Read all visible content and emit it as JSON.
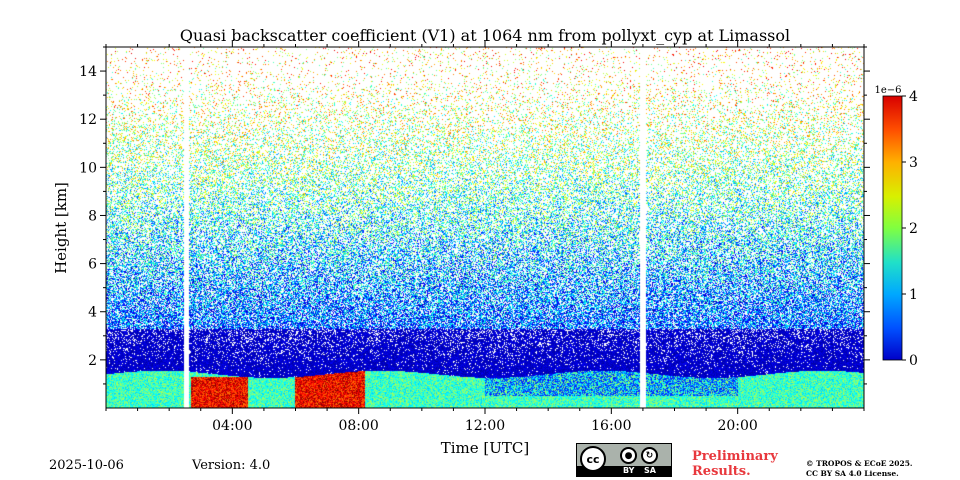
{
  "chart_data": {
    "type": "heatmap",
    "title": "Quasi backscatter coefficient (V1) at 1064 nm from pollyxt_cyp at Limassol",
    "xlabel": "Time [UTC]",
    "ylabel": "Height [km]",
    "x_tick_labels": [
      "04:00",
      "08:00",
      "12:00",
      "16:00",
      "20:00"
    ],
    "x_ticks_hours": [
      4,
      8,
      12,
      16,
      20
    ],
    "xlim_hours": [
      0,
      24
    ],
    "y_ticks": [
      2,
      4,
      6,
      8,
      10,
      12,
      14
    ],
    "ylim_km": [
      0,
      15
    ],
    "colorbar": {
      "range": [
        0,
        4
      ],
      "ticks": [
        0,
        1,
        2,
        3,
        4
      ],
      "scale_label": "1e−6",
      "colormap": "jet"
    },
    "data_gaps_hours": [
      2.55,
      17.0
    ],
    "layers": [
      {
        "feature": "aerosol boundary layer",
        "time_range": [
          0,
          24
        ],
        "height_km": [
          0,
          1.5
        ],
        "value_range": [
          1.2,
          2.5
        ]
      },
      {
        "feature": "enhanced near-surface aerosol",
        "time_range": [
          2.7,
          4.5
        ],
        "height_km": [
          0,
          1.3
        ],
        "value_range": [
          3.0,
          4.0
        ]
      },
      {
        "feature": "enhanced near-surface aerosol",
        "time_range": [
          6.0,
          8.2
        ],
        "height_km": [
          0,
          1.8
        ],
        "value_range": [
          3.0,
          4.0
        ]
      },
      {
        "feature": "residual layer",
        "time_range": [
          0,
          24
        ],
        "height_km": [
          1.5,
          3.5
        ],
        "value_range": [
          0.1,
          0.6
        ]
      },
      {
        "feature": "free troposphere (noisy)",
        "time_range": [
          0,
          24
        ],
        "height_km": [
          3.5,
          15
        ],
        "value_range": [
          0.3,
          3.5
        ]
      }
    ]
  },
  "footer": {
    "date": "2025-10-06",
    "version": "Version: 4.0",
    "license_cc": "cc",
    "license_by": "BY",
    "license_sa": "SA",
    "preliminary_line1": "Preliminary",
    "preliminary_line2": "Results.",
    "copyright_line1": "© TROPOS & ECoE 2025.",
    "copyright_line2": "CC BY SA 4.0 License."
  },
  "colors": {
    "background": "#ffffff",
    "preliminary": "#e8383d"
  }
}
